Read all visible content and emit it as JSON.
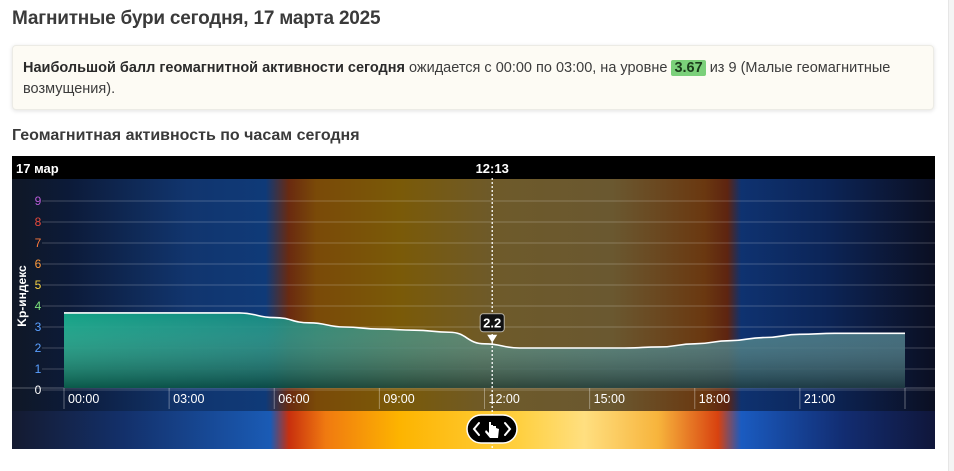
{
  "page": {
    "title": "Магнитные бури сегодня, 17 марта 2025",
    "section_title": "Геомагнитная активность по часам сегодня"
  },
  "info": {
    "bold_text": "Наибольшой балл геомагнитной активности сегодня",
    "text_before": " ожидается с 00:00 по 03:00, на уровне ",
    "level": "3.67",
    "text_after": " из 9 (Малые геомагнитные возмущения)."
  },
  "colors": {
    "badge": "#7bd07a",
    "fill_teal": "#12a889",
    "line": "#ffffff",
    "scale_colors": [
      "#ffffff",
      "#5aa0ff",
      "#5aa0ff",
      "#5aa0ff",
      "#7be07b",
      "#f5d142",
      "#ff9a3c",
      "#ff7a3c",
      "#e84a3c",
      "#b85cd6"
    ]
  },
  "chart_data": {
    "type": "area",
    "date_label": "17 мар",
    "current_time": "12:13",
    "current_value": "2.2",
    "ylabel": "Kp-индекс",
    "ylim": [
      0,
      9
    ],
    "y_ticks": [
      "0",
      "1",
      "2",
      "3",
      "4",
      "5",
      "6",
      "7",
      "8",
      "9"
    ],
    "x_ticks": [
      "00:00",
      "03:00",
      "06:00",
      "09:00",
      "12:00",
      "15:00",
      "18:00",
      "21:00"
    ],
    "x_hours": [
      0,
      1,
      2,
      3,
      4,
      5,
      6,
      7,
      8,
      9,
      10,
      11,
      12,
      13,
      14,
      15,
      16,
      17,
      18,
      19,
      20,
      21,
      22,
      23,
      24
    ],
    "values": [
      3.67,
      3.67,
      3.67,
      3.67,
      3.67,
      3.67,
      3.45,
      3.2,
      3.0,
      2.9,
      2.85,
      2.75,
      2.2,
      2.0,
      2.0,
      2.0,
      2.0,
      2.05,
      2.2,
      2.35,
      2.5,
      2.65,
      2.7,
      2.7,
      2.7
    ],
    "current_hour": 12.22,
    "legend": "none",
    "grid": true
  }
}
